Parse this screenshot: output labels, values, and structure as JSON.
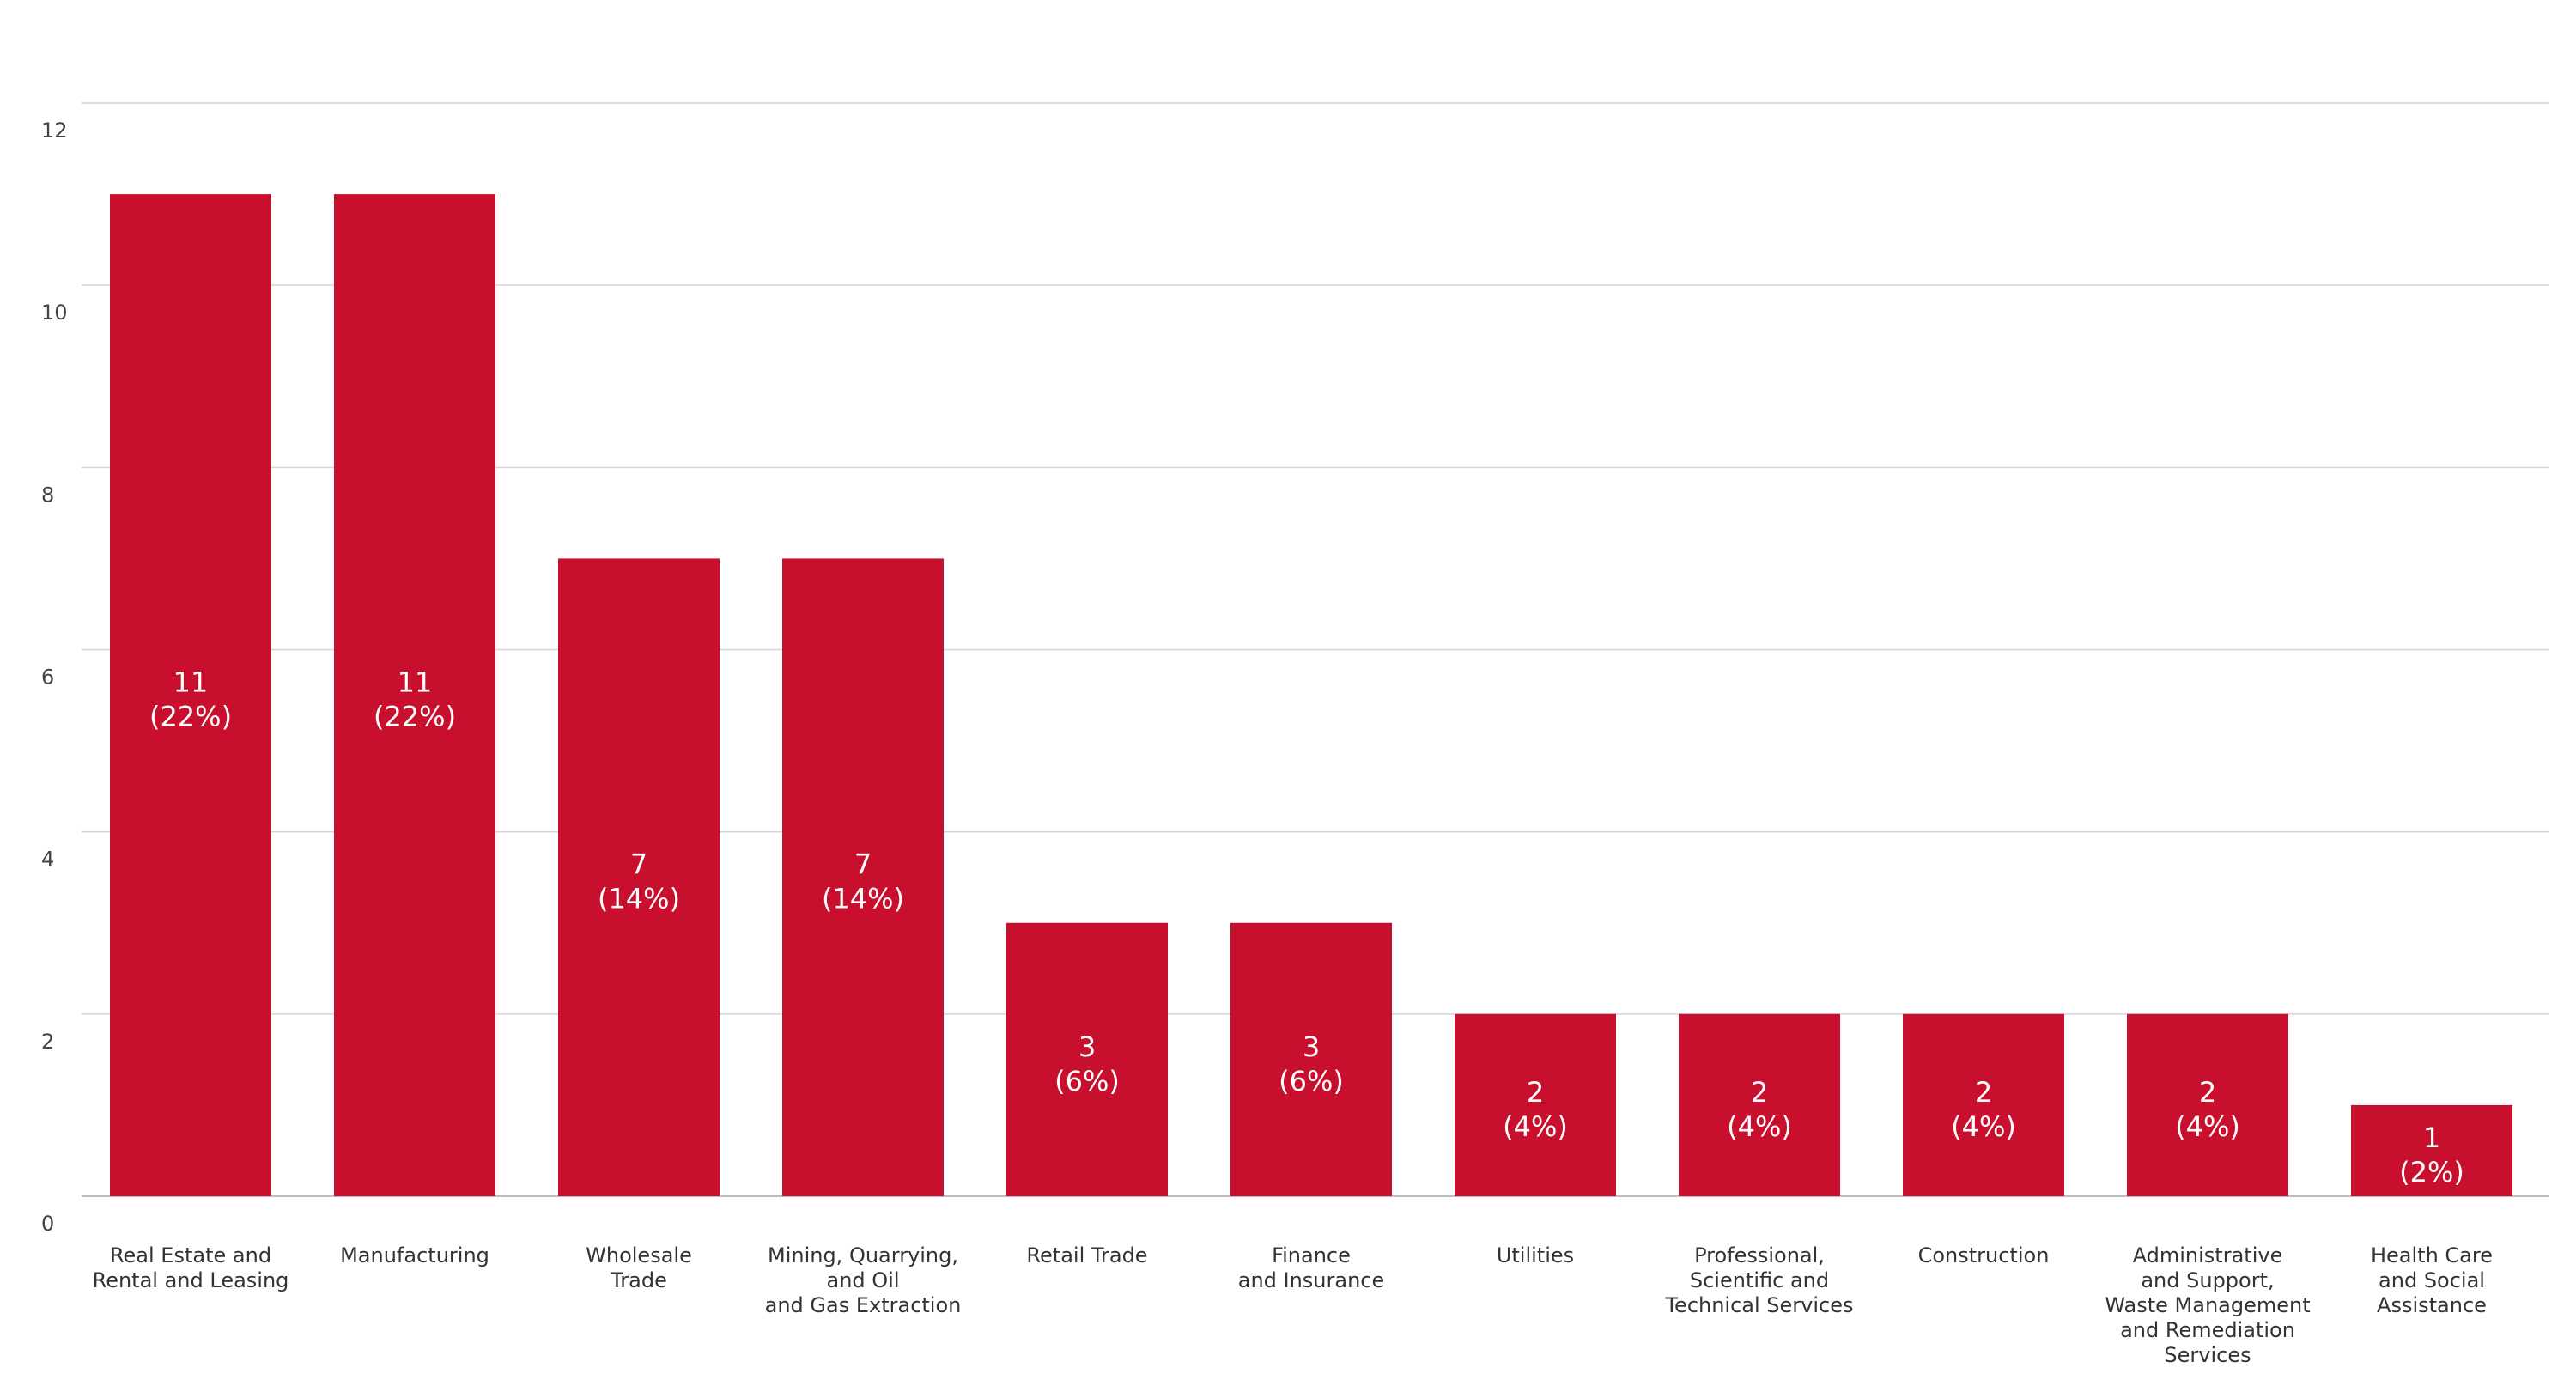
{
  "chart_data": {
    "type": "bar",
    "title": "",
    "xlabel": "",
    "ylabel": "",
    "ylim": [
      0,
      12
    ],
    "yticks": [
      0,
      2,
      4,
      6,
      8,
      10,
      12
    ],
    "grid": true,
    "bar_color": "#c8102e",
    "categories": [
      [
        "Real Estate and",
        "Rental and Leasing"
      ],
      [
        "Manufacturing"
      ],
      [
        "Wholesale",
        "Trade"
      ],
      [
        "Mining, Quarrying,",
        "and Oil",
        "and Gas Extraction"
      ],
      [
        "Retail Trade"
      ],
      [
        "Finance",
        "and Insurance"
      ],
      [
        "Utilities"
      ],
      [
        "Professional,",
        "Scientific and",
        "Technical Services"
      ],
      [
        "Construction"
      ],
      [
        "Administrative",
        "and Support,",
        "Waste Management",
        "and Remediation",
        "Services"
      ],
      [
        "Health Care",
        "and Social",
        "Assistance"
      ]
    ],
    "values": [
      11,
      11,
      7,
      7,
      3,
      3,
      2,
      2,
      2,
      2,
      1
    ],
    "percent_labels": [
      "(22%)",
      "(22%)",
      "(14%)",
      "(14%)",
      "(6%)",
      "(6%)",
      "(4%)",
      "(4%)",
      "(4%)",
      "(4%)",
      "(2%)"
    ]
  }
}
